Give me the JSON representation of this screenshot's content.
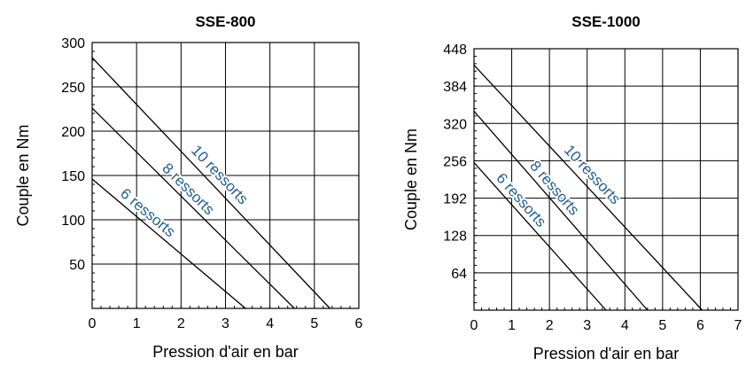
{
  "chart_data": [
    {
      "type": "line",
      "title": "SSE-800",
      "xlabel": "Pression d'air en bar",
      "ylabel": "Couple en Nm",
      "xlim": [
        0,
        6
      ],
      "ylim": [
        0,
        300
      ],
      "xticks": [
        "0",
        "1",
        "2",
        "3",
        "4",
        "5",
        "6"
      ],
      "yticks": [
        "50",
        "100",
        "150",
        "200",
        "250",
        "300"
      ],
      "grid": true,
      "series": [
        {
          "name": "10 ressorts",
          "x": [
            0,
            5.35
          ],
          "y": [
            283,
            0
          ]
        },
        {
          "name": "8 ressorts",
          "x": [
            0,
            4.55
          ],
          "y": [
            226,
            0
          ]
        },
        {
          "name": "6 ressorts",
          "x": [
            0,
            3.45
          ],
          "y": [
            146,
            0
          ]
        }
      ]
    },
    {
      "type": "line",
      "title": "SSE-1000",
      "xlabel": "Pression d'air en bar",
      "ylabel": "Couple en Nm",
      "xlim": [
        0,
        7
      ],
      "ylim": [
        0,
        448
      ],
      "xticks": [
        "0",
        "1",
        "2",
        "3",
        "4",
        "5",
        "6",
        "7"
      ],
      "yticks": [
        "64",
        "128",
        "192",
        "256",
        "320",
        "384",
        "448"
      ],
      "grid": true,
      "series": [
        {
          "name": "10 ressorts",
          "x": [
            0,
            6.05
          ],
          "y": [
            420,
            0
          ]
        },
        {
          "name": "8 ressorts",
          "x": [
            0,
            4.6
          ],
          "y": [
            341,
            0
          ]
        },
        {
          "name": "6 ressorts",
          "x": [
            0,
            3.5
          ],
          "y": [
            253,
            0
          ]
        }
      ]
    }
  ]
}
